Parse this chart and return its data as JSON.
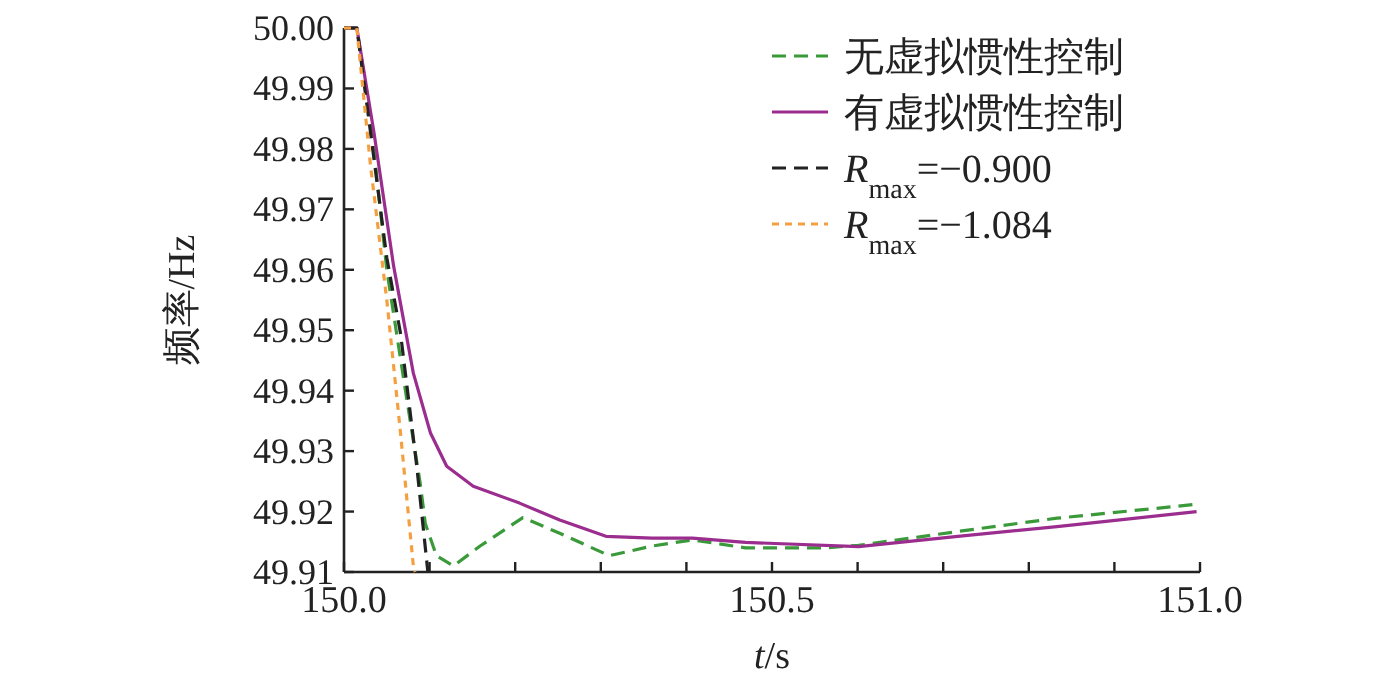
{
  "chart_data": {
    "type": "line",
    "xlabel": "*t*/s",
    "ylabel": "频率/Hz",
    "xlim": [
      150.0,
      151.0
    ],
    "ylim": [
      49.91,
      50.0
    ],
    "xticks": [
      {
        "value": 150.0,
        "label": "150.0"
      },
      {
        "value": 150.1,
        "label": null
      },
      {
        "value": 150.2,
        "label": null
      },
      {
        "value": 150.3,
        "label": null
      },
      {
        "value": 150.4,
        "label": null
      },
      {
        "value": 150.5,
        "label": "150.5"
      },
      {
        "value": 150.6,
        "label": null
      },
      {
        "value": 150.7,
        "label": null
      },
      {
        "value": 150.8,
        "label": null
      },
      {
        "value": 150.9,
        "label": null
      },
      {
        "value": 151.0,
        "label": "151.0"
      }
    ],
    "yticks": [
      49.91,
      49.92,
      49.93,
      49.94,
      49.95,
      49.96,
      49.97,
      49.98,
      49.99,
      {
        "value": 50.0,
        "label": "50.00"
      }
    ],
    "grid": false,
    "legend": "top right",
    "series": [
      {
        "name": "无虚拟惯性控制",
        "color": "#3a9a3a",
        "line_style": "dashed",
        "x": [
          150.0,
          150.015,
          150.031,
          150.05,
          150.074,
          150.089,
          150.095,
          150.108,
          150.128,
          150.159,
          150.209,
          150.252,
          150.31,
          150.36,
          150.407,
          150.469,
          150.562,
          150.601,
          150.717,
          150.833,
          150.996
        ],
        "values": [
          50.0,
          50.0,
          49.985,
          49.96,
          49.938,
          49.9247,
          49.918,
          49.9127,
          49.911,
          49.9143,
          49.919,
          49.9164,
          49.9127,
          49.9143,
          49.9153,
          49.914,
          49.914,
          49.9144,
          49.9167,
          49.9189,
          49.9212
        ]
      },
      {
        "name": "有虚拟惯性控制",
        "color": "#9b2d8f",
        "line_style": "solid",
        "x": [
          150.0,
          150.015,
          150.035,
          150.058,
          150.081,
          150.101,
          150.12,
          150.151,
          150.205,
          150.252,
          150.306,
          150.36,
          150.407,
          150.469,
          150.601,
          150.717,
          150.833,
          150.996
        ],
        "values": [
          50.0,
          50.0,
          49.9827,
          49.9606,
          49.9429,
          49.933,
          49.9275,
          49.9242,
          49.9214,
          49.9186,
          49.9159,
          49.9156,
          49.9156,
          49.9149,
          49.9142,
          49.9159,
          49.9175,
          49.92
        ]
      },
      {
        "name": "*R*$_{max}$=−0.900",
        "color": "#222222",
        "line_style": "dashed",
        "x": [
          150.0,
          150.015,
          150.031,
          150.05,
          150.066,
          150.085,
          150.098
        ],
        "values": [
          50.0,
          50.0,
          49.9827,
          49.962,
          49.9495,
          49.9275,
          49.91
        ]
      },
      {
        "name": "*R*$_{max}$=−1.084",
        "color": "#f5a040",
        "line_style": "dotted",
        "x": [
          150.0,
          150.015,
          150.031,
          150.05,
          150.066,
          150.081,
          150.083
        ],
        "values": [
          50.0,
          50.0,
          49.9772,
          49.955,
          49.933,
          49.911,
          49.91
        ]
      }
    ]
  }
}
